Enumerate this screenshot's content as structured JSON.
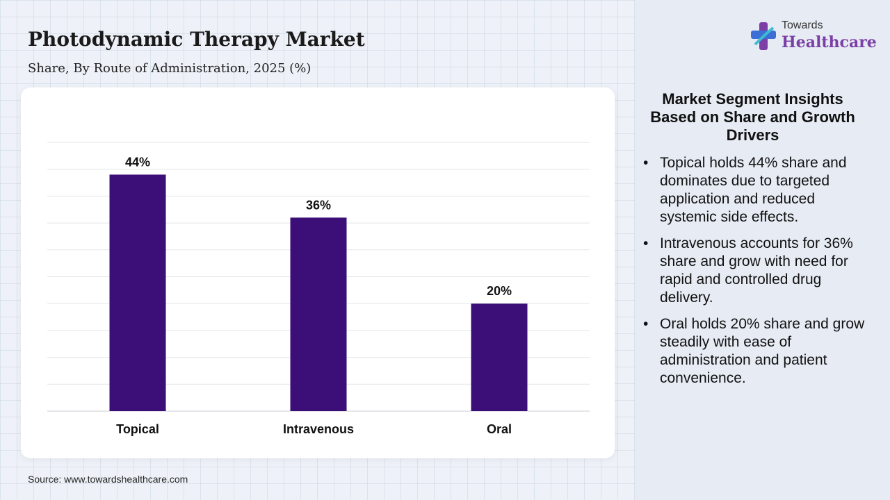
{
  "header": {
    "title": "Photodynamic Therapy Market",
    "subtitle": "Share, By Route of Administration, 2025 (%)"
  },
  "logo": {
    "top": "Towards",
    "main": "Healthcare"
  },
  "chart_data": {
    "type": "bar",
    "categories": [
      "Topical",
      "Intravenous",
      "Oral"
    ],
    "values": [
      44,
      36,
      20
    ],
    "data_labels": [
      "44%",
      "36%",
      "20%"
    ],
    "ylim": [
      0,
      50
    ],
    "grid": true,
    "bar_color": "#3b0f77"
  },
  "insights": {
    "title": "Market Segment Insights Based on Share and Growth Drivers",
    "items": [
      "Topical holds 44% share and dominates due to targeted application and reduced systemic side effects.",
      "Intravenous accounts for 36% share and grow with need for rapid and controlled drug delivery.",
      "Oral holds 20% share and grow steadily with ease of administration and patient convenience."
    ]
  },
  "source": "Source: www.towardshealthcare.com",
  "colors": {
    "accent": "#3b0f77",
    "brand": "#7b3fa6"
  }
}
